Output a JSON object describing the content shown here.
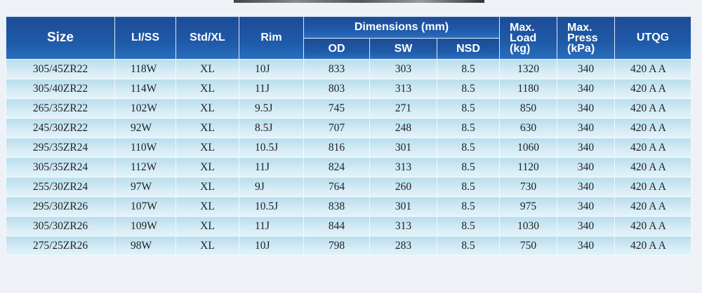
{
  "headers": {
    "size": "Size",
    "li_ss": "LI/SS",
    "std_xl": "Std/XL",
    "rim": "Rim",
    "dimensions": "Dimensions (mm)",
    "od": "OD",
    "sw": "SW",
    "nsd": "NSD",
    "max_load": [
      "Max.",
      "Load",
      "(kg)"
    ],
    "max_press": [
      "Max.",
      "Press",
      "(kPa)"
    ],
    "utqg": "UTQG"
  },
  "rows": [
    [
      "305/45ZR22",
      "118W",
      "XL",
      "10J",
      "833",
      "303",
      "8.5",
      "1320",
      "340",
      "420 A A"
    ],
    [
      "305/40ZR22",
      "114W",
      "XL",
      "11J",
      "803",
      "313",
      "8.5",
      "1180",
      "340",
      "420 A A"
    ],
    [
      "265/35ZR22",
      "102W",
      "XL",
      "9.5J",
      "745",
      "271",
      "8.5",
      "850",
      "340",
      "420 A A"
    ],
    [
      "245/30ZR22",
      "92W",
      "XL",
      "8.5J",
      "707",
      "248",
      "8.5",
      "630",
      "340",
      "420 A A"
    ],
    [
      "295/35ZR24",
      "110W",
      "XL",
      "10.5J",
      "816",
      "301",
      "8.5",
      "1060",
      "340",
      "420 A A"
    ],
    [
      "305/35ZR24",
      "112W",
      "XL",
      "11J",
      "824",
      "313",
      "8.5",
      "1120",
      "340",
      "420 A A"
    ],
    [
      "255/30ZR24",
      "97W",
      "XL",
      "9J",
      "764",
      "260",
      "8.5",
      "730",
      "340",
      "420 A A"
    ],
    [
      "295/30ZR26",
      "107W",
      "XL",
      "10.5J",
      "838",
      "301",
      "8.5",
      "975",
      "340",
      "420 A A"
    ],
    [
      "305/30ZR26",
      "109W",
      "XL",
      "11J",
      "844",
      "313",
      "8.5",
      "1030",
      "340",
      "420 A A"
    ],
    [
      "275/25ZR26",
      "98W",
      "XL",
      "10J",
      "798",
      "283",
      "8.5",
      "750",
      "340",
      "420 A A"
    ]
  ]
}
